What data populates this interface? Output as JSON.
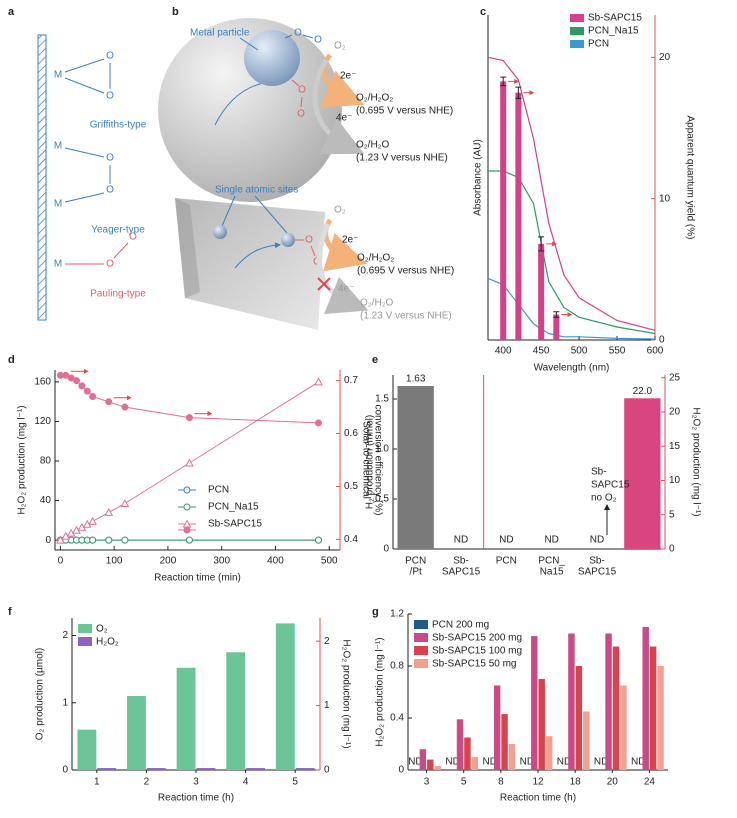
{
  "panel_a": {
    "label": "a",
    "metal": "M",
    "oxygen": "O",
    "types": [
      "Griffiths-type",
      "Yeager-type",
      "Pauling-type"
    ]
  },
  "panel_b": {
    "label": "b",
    "oxygen": "O",
    "top": {
      "site": "Metal particle",
      "reactant": "O₂",
      "two_electron": "2e⁻",
      "four_electron": "4e⁻",
      "product_2e": "O₂/H₂O₂",
      "potential_2e": "(0.695 V versus NHE)",
      "product_4e": "O₂/H₂O",
      "potential_4e": "(1.23 V versus NHE)"
    },
    "bottom": {
      "site": "Single atomic sites",
      "reactant": "O₂",
      "two_electron": "2e⁻",
      "four_electron": "4e⁻",
      "product_2e": "O₂/H₂O₂",
      "potential_2e": "(0.695 V versus NHE)",
      "product_4e": "O₂/H₂O",
      "potential_4e": "(1.23 V versus NHE)"
    }
  },
  "chart_data": [
    {
      "label": "c",
      "type": "bar_line",
      "xlabel": "Wavelength (nm)",
      "ylabel": "Absorbance (AU)",
      "y2label": "Apparent quantum yield (%)",
      "xlim": [
        380,
        600
      ],
      "xticks": [
        400,
        450,
        500,
        550,
        600
      ],
      "ylim": [
        0,
        1
      ],
      "y2lim": [
        0,
        23
      ],
      "y2ticks": [
        0,
        10,
        20
      ],
      "y2color": "#e05050",
      "legend": "top-right",
      "series": [
        {
          "name": "Sb-SAPC15",
          "color": "#d6408a",
          "x": [
            380,
            400,
            420,
            440,
            460,
            480,
            500,
            550,
            600
          ],
          "values": [
            0.87,
            0.86,
            0.8,
            0.62,
            0.36,
            0.2,
            0.13,
            0.06,
            0.03
          ]
        },
        {
          "name": "PCN_Na15",
          "color": "#2e9a60",
          "x": [
            380,
            400,
            420,
            440,
            460,
            480,
            500,
            550,
            600
          ],
          "values": [
            0.52,
            0.52,
            0.5,
            0.42,
            0.18,
            0.1,
            0.07,
            0.04,
            0.02
          ]
        },
        {
          "name": "PCN",
          "color": "#3a9ad0",
          "x": [
            380,
            400,
            420,
            440,
            460,
            480,
            500,
            550,
            600
          ],
          "values": [
            0.19,
            0.17,
            0.11,
            0.05,
            0.02,
            0.01,
            0.01,
            0.005,
            0.003
          ]
        }
      ],
      "bars": {
        "color": "#d6408a",
        "axis": "y2",
        "x": [
          400,
          420,
          450,
          470
        ],
        "values": [
          18.3,
          17.5,
          6.8,
          1.8
        ],
        "errors": [
          0.3,
          0.4,
          0.5,
          0.2
        ]
      }
    },
    {
      "label": "d",
      "type": "line",
      "xlabel": "Reaction time (min)",
      "ylabel": "H₂O₂ production (mg l⁻¹)",
      "y2label": [
        "Solar-to-chemical",
        "conversion efficiency (%)"
      ],
      "xlim": [
        -10,
        520
      ],
      "xticks": [
        0,
        100,
        200,
        300,
        400,
        500
      ],
      "ylim": [
        -10,
        172
      ],
      "yticks": [
        0,
        40,
        80,
        120,
        160
      ],
      "y2lim": [
        0.38,
        0.72
      ],
      "y2ticks": [
        0.4,
        0.5,
        0.6,
        0.7
      ],
      "y2color": "#e05050",
      "legend": "center",
      "series": [
        {
          "name": "PCN",
          "color": "#3c7fc0",
          "marker": "open-circle",
          "x": [
            0,
            10,
            20,
            30,
            40,
            50,
            60,
            90,
            120,
            240,
            480
          ],
          "values": [
            0,
            0,
            0,
            0,
            0,
            0,
            0,
            0,
            0,
            0,
            0
          ]
        },
        {
          "name": "PCN_Na15",
          "color": "#3a9a6a",
          "marker": "open-circle",
          "x": [
            0,
            10,
            20,
            30,
            40,
            50,
            60,
            90,
            120,
            240,
            480
          ],
          "values": [
            0,
            0,
            0,
            0,
            0,
            0,
            0,
            0,
            0,
            0,
            0
          ]
        },
        {
          "name": "Sb-SAPC15",
          "color": "#e0709a",
          "marker": "open-triangle",
          "x": [
            0,
            10,
            20,
            30,
            40,
            50,
            60,
            90,
            120,
            240,
            480
          ],
          "values": [
            0,
            4,
            7,
            10,
            13,
            16,
            19,
            28,
            37,
            78,
            160
          ]
        },
        {
          "color": "#e0709a",
          "marker": "filled-circle",
          "axis": "y2",
          "x": [
            0,
            10,
            20,
            30,
            40,
            50,
            60,
            90,
            120,
            240,
            480
          ],
          "values": [
            0.71,
            0.71,
            0.705,
            0.7,
            0.69,
            0.68,
            0.67,
            0.66,
            0.65,
            0.63,
            0.62
          ]
        }
      ]
    },
    {
      "label": "e",
      "type": "bar",
      "ylabel": "H₂ production (mmol)",
      "y2label": "H₂O₂ production (mg l⁻¹)",
      "categories": [
        [
          "PCN",
          "/Pt"
        ],
        [
          "Sb-",
          "SAPC15"
        ],
        [
          "PCN"
        ],
        [
          "PCN_",
          "Na15"
        ],
        [
          "Sb-",
          "SAPC15"
        ],
        null
      ],
      "category_colors": [
        "#777777",
        "#e04a6a",
        "#3c7fc0",
        "#3a9a6a",
        "#d9467f",
        null
      ],
      "value_label_colors": [
        "#777777",
        "#e04848",
        "#3c7fc0",
        "#3a9a6a",
        "#222222",
        "#d9467f"
      ],
      "ylim": [
        0,
        1.74
      ],
      "yticks": [
        0,
        0.5,
        {
          "value": 1,
          "label": "1.0"
        },
        1.5
      ],
      "y2lim": [
        0,
        25.4
      ],
      "y2ticks": [
        0,
        5,
        10,
        15,
        20,
        25
      ],
      "y2color": "#e05050",
      "divider_after": 1,
      "divider_color": "#e05050",
      "annotation": [
        "Sb-",
        "SAPC15",
        "no O₂"
      ],
      "series": [
        {
          "color": "#7a7a7a",
          "values": [
            1.63,
            null,
            null,
            null,
            null,
            null
          ],
          "value_labels": [
            "1.63",
            "ND",
            null,
            null,
            null,
            null
          ]
        },
        {
          "color": "#d9467f",
          "axis": "y2",
          "values": [
            null,
            null,
            null,
            null,
            null,
            22.0
          ],
          "value_labels": [
            null,
            null,
            "ND",
            "ND",
            "ND",
            "22.0"
          ]
        }
      ]
    },
    {
      "label": "f",
      "type": "grouped_bar",
      "xlabel": "Reaction time (h)",
      "ylabel": "O₂ production (µmol)",
      "y2label": "H₂O₂ production (mg l⁻¹)",
      "categories": [
        "1",
        "2",
        "3",
        "4",
        "5"
      ],
      "ylim": [
        0,
        2.26
      ],
      "yticks": [
        0,
        1,
        2
      ],
      "y2lim": [
        0,
        2.36
      ],
      "y2ticks": [
        0,
        1,
        2
      ],
      "y2color": "#e05050",
      "legend": "top-left",
      "series": [
        {
          "name": "O₂",
          "color": "#6cc596",
          "values": [
            0.6,
            1.1,
            1.52,
            1.75,
            2.18
          ]
        },
        {
          "name": "H₂O₂",
          "color": "#8c62c8",
          "axis": "y2",
          "values": [
            0.03,
            0.03,
            0.03,
            0.03,
            0.03
          ]
        }
      ]
    },
    {
      "label": "g",
      "type": "grouped_bar",
      "xlabel": "Reaction time (h)",
      "ylabel": "H₂O₂ production (mg l⁻¹)",
      "categories": [
        "3",
        "5",
        "8",
        "12",
        "18",
        "20",
        "24"
      ],
      "ylim": [
        0,
        1.2
      ],
      "yticks": [
        0,
        0.4,
        0.8,
        1.2
      ],
      "legend": "top-left",
      "series": [
        {
          "name": "PCN 200 mg",
          "color": "#1f5a8a",
          "values": [
            null,
            null,
            null,
            null,
            null,
            null,
            null
          ],
          "value_labels": [
            "ND",
            "ND",
            "ND",
            "ND",
            "ND",
            "ND",
            "ND"
          ],
          "label_color": "#3a9ad0"
        },
        {
          "name": "Sb-SAPC15 200 mg",
          "color": "#c94a86",
          "values": [
            0.16,
            0.39,
            0.65,
            1.03,
            1.05,
            1.05,
            1.1
          ]
        },
        {
          "name": "Sb-SAPC15 100 mg",
          "color": "#d9434b",
          "values": [
            0.08,
            0.25,
            0.43,
            0.7,
            0.8,
            0.95,
            0.95
          ]
        },
        {
          "name": "Sb-SAPC15 50 mg",
          "color": "#f2a08f",
          "values": [
            0.03,
            0.1,
            0.2,
            0.26,
            0.45,
            0.65,
            0.8
          ]
        }
      ]
    }
  ]
}
